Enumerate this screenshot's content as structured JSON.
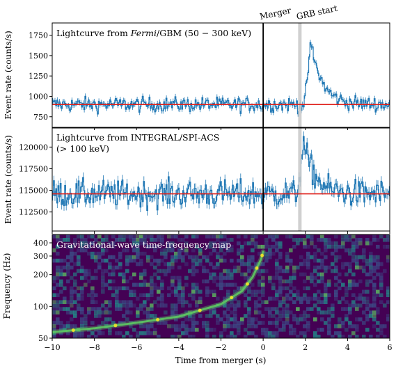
{
  "chart_data": [
    {
      "type": "line",
      "panel": "gbm",
      "title_prefix": "Lightcurve from ",
      "title_italic": "Fermi",
      "title_suffix": "/GBM (50 − 300 keV)",
      "ylabel": "Event rate (counts/s)",
      "ylim": [
        620,
        1900
      ],
      "yticks": [
        750,
        1000,
        1250,
        1500,
        1750
      ],
      "xlim": [
        -10,
        6
      ],
      "background_level": 900,
      "noise_amplitude": 75,
      "grb_peak": {
        "t": 2.25,
        "value": 1620
      },
      "colors": {
        "series": "#1f77b4",
        "background": "#e0201a"
      }
    },
    {
      "type": "line",
      "panel": "spiacs",
      "title_line1": "Lightcurve from INTEGRAL/SPI-ACS",
      "title_line2": "(> 100 keV)",
      "ylabel": "Event rate (counts/s)",
      "ylim": [
        110300,
        122200
      ],
      "yticks": [
        112500,
        115000,
        117500,
        120000
      ],
      "yticklabels": [
        "112500",
        "115000",
        "117500",
        "120000"
      ],
      "xlim": [
        -10,
        6
      ],
      "background_level": 114600,
      "noise_amplitude": 1300,
      "grb_peak": {
        "t": 1.9,
        "value": 120200
      },
      "colors": {
        "series": "#1f77b4",
        "background": "#e0201a"
      }
    },
    {
      "type": "heatmap",
      "panel": "timefreq",
      "title": "Gravitational-wave time-frequency map",
      "ylabel": "Frequency (Hz)",
      "xlabel": "Time from merger (s)",
      "yscale": "log",
      "ylim": [
        50,
        480
      ],
      "yticks": [
        50,
        100,
        200,
        300,
        400
      ],
      "xlim": [
        -10,
        6
      ],
      "xticks": [
        -10,
        -8,
        -6,
        -4,
        -2,
        0,
        2,
        4,
        6
      ],
      "xticklabels": [
        "−10",
        "−8",
        "−6",
        "−4",
        "−2",
        "0",
        "2",
        "4",
        "6"
      ],
      "chirp_track": {
        "t": [
          -10.0,
          -8.0,
          -6.0,
          -4.0,
          -2.0,
          -1.0,
          -0.5,
          -0.1,
          0.0
        ],
        "f": [
          57,
          62,
          70,
          80,
          105,
          140,
          190,
          280,
          330
        ]
      },
      "colormap": [
        "#440154",
        "#3b528b",
        "#21918c",
        "#5ec962",
        "#fde725"
      ]
    }
  ],
  "annotations": {
    "merger_label": "Merger",
    "merger_time": 0,
    "grb_start_label": "GRB start",
    "grb_start_time": 1.74
  }
}
